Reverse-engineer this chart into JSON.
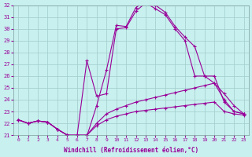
{
  "xlabel": "Windchill (Refroidissement éolien,°C)",
  "xlim": [
    -0.5,
    23.5
  ],
  "ylim": [
    21,
    32
  ],
  "yticks": [
    21,
    22,
    23,
    24,
    25,
    26,
    27,
    28,
    29,
    30,
    31,
    32
  ],
  "xticks": [
    0,
    1,
    2,
    3,
    4,
    5,
    6,
    7,
    8,
    9,
    10,
    11,
    12,
    13,
    14,
    15,
    16,
    17,
    18,
    19,
    20,
    21,
    22,
    23
  ],
  "bg_color": "#c8f0ee",
  "grid_color": "#a0cccc",
  "line_color": "#990099",
  "line1_x": [
    0,
    1,
    2,
    3,
    4,
    5,
    6,
    7,
    8,
    9,
    10,
    11,
    12,
    13,
    14,
    15,
    16,
    17,
    18,
    19,
    20,
    21,
    22,
    23
  ],
  "line1_y": [
    22.3,
    22.0,
    22.2,
    22.1,
    21.5,
    21.0,
    20.9,
    20.9,
    23.5,
    26.5,
    30.3,
    30.2,
    31.8,
    32.4,
    32.0,
    31.4,
    30.2,
    29.3,
    28.5,
    26.0,
    26.0,
    23.8,
    23.0,
    22.8
  ],
  "line2_x": [
    0,
    1,
    2,
    3,
    4,
    5,
    6,
    7,
    8,
    9,
    10,
    11,
    12,
    13,
    14,
    15,
    16,
    17,
    18,
    19,
    20,
    21,
    22,
    23
  ],
  "line2_y": [
    22.3,
    22.0,
    22.2,
    22.1,
    21.5,
    21.0,
    20.9,
    27.3,
    24.3,
    24.5,
    30.0,
    30.1,
    31.5,
    32.2,
    31.7,
    31.2,
    30.0,
    29.0,
    26.0,
    26.0,
    25.4,
    24.0,
    23.0,
    22.8
  ],
  "line3_x": [
    0,
    1,
    2,
    3,
    4,
    5,
    6,
    7,
    8,
    9,
    10,
    11,
    12,
    13,
    14,
    15,
    16,
    17,
    18,
    19,
    20,
    21,
    22,
    23
  ],
  "line3_y": [
    22.3,
    22.0,
    22.2,
    22.1,
    21.5,
    21.0,
    21.0,
    21.0,
    22.0,
    22.8,
    23.2,
    23.5,
    23.8,
    24.0,
    24.2,
    24.4,
    24.6,
    24.8,
    25.0,
    25.2,
    25.4,
    24.5,
    23.5,
    22.8
  ],
  "line4_x": [
    0,
    1,
    2,
    3,
    4,
    5,
    6,
    7,
    8,
    9,
    10,
    11,
    12,
    13,
    14,
    15,
    16,
    17,
    18,
    19,
    20,
    21,
    22,
    23
  ],
  "line4_y": [
    22.3,
    22.0,
    22.2,
    22.1,
    21.5,
    21.0,
    21.0,
    21.0,
    21.8,
    22.3,
    22.6,
    22.8,
    23.0,
    23.1,
    23.2,
    23.3,
    23.4,
    23.5,
    23.6,
    23.7,
    23.8,
    23.0,
    22.8,
    22.7
  ]
}
